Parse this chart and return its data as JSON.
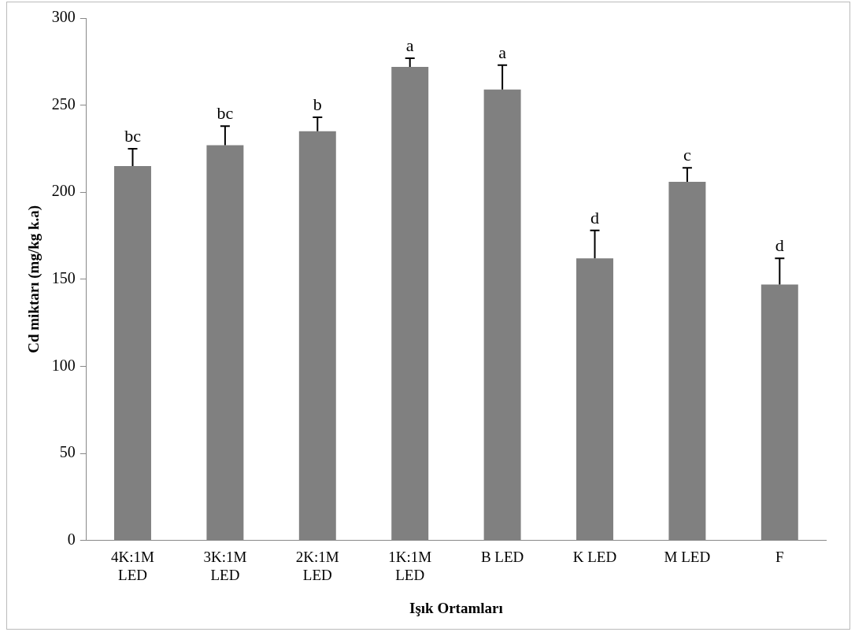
{
  "chart_data": {
    "type": "bar",
    "xlabel": "Işık Ortamları",
    "ylabel": "Cd miktarı (mg/kg k.a)",
    "categories": [
      "4K:1M\nLED",
      "3K:1M\nLED",
      "2K:1M\nLED",
      "1K:1M\nLED",
      "B LED",
      "K LED",
      "M LED",
      "F"
    ],
    "values": [
      215,
      227,
      235,
      272,
      259,
      162,
      206,
      147
    ],
    "errors": [
      [
        215,
        225
      ],
      [
        227,
        238
      ],
      [
        235,
        243
      ],
      [
        272,
        277
      ],
      [
        259,
        273
      ],
      [
        162,
        178
      ],
      [
        206,
        214
      ],
      [
        147,
        162
      ]
    ],
    "color": "#808080",
    "ylim": [
      0,
      300
    ],
    "yticks": [
      0,
      50,
      100,
      150,
      200,
      250,
      300
    ],
    "grid": false,
    "legend": false,
    "annotations": [
      {
        "text": "bc",
        "x": "4K:1M\nLED",
        "y": 215
      },
      {
        "text": "bc",
        "x": "3K:1M\nLED",
        "y": 227
      },
      {
        "text": "b",
        "x": "2K:1M\nLED",
        "y": 235
      },
      {
        "text": "a",
        "x": "1K:1M\nLED",
        "y": 272
      },
      {
        "text": "a",
        "x": "B LED",
        "y": 259
      },
      {
        "text": "d",
        "x": "K LED",
        "y": 162
      },
      {
        "text": "c",
        "x": "M LED",
        "y": 206
      },
      {
        "text": "d",
        "x": "F",
        "y": 147
      }
    ]
  }
}
